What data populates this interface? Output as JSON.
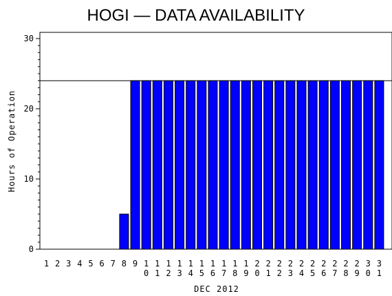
{
  "chart_data": {
    "type": "bar",
    "title": "HOGI — DATA AVAILABILITY",
    "xlabel": "DEC 2012",
    "ylabel": "Hours of Operation",
    "ylim": [
      0,
      30
    ],
    "yticks": [
      0,
      10,
      20,
      30
    ],
    "reference_line": 24,
    "grid": false,
    "bar_color": "#0000ff",
    "categories": [
      "1",
      "2",
      "3",
      "4",
      "5",
      "6",
      "7",
      "8",
      "9",
      "10",
      "11",
      "12",
      "13",
      "14",
      "15",
      "16",
      "17",
      "18",
      "19",
      "20",
      "21",
      "22",
      "23",
      "24",
      "25",
      "26",
      "27",
      "28",
      "29",
      "30",
      "31"
    ],
    "values": [
      0,
      0,
      0,
      0,
      0,
      0,
      0,
      5,
      24,
      24,
      24,
      24,
      24,
      24,
      24,
      24,
      24,
      24,
      24,
      24,
      24,
      24,
      24,
      24,
      24,
      24,
      24,
      24,
      24,
      24,
      24
    ]
  }
}
